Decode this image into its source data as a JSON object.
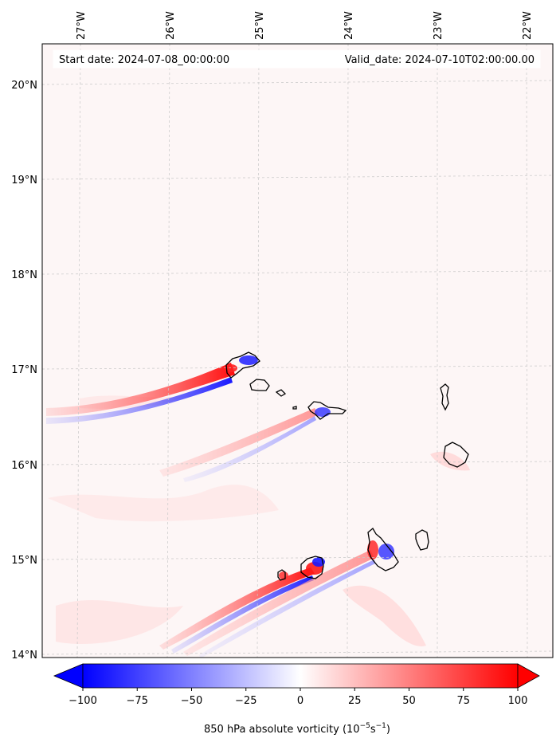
{
  "header": {
    "start_date": "Start date: 2024-07-08_00:00:00",
    "valid_date": "Valid_date: 2024-07-10T02:00:00.00"
  },
  "axes": {
    "lon_ticks": [
      "27°W",
      "26°W",
      "25°W",
      "24°W",
      "23°W",
      "22°W"
    ],
    "lat_ticks": [
      "20°N",
      "19°N",
      "18°N",
      "17°N",
      "16°N",
      "15°N",
      "14°N"
    ],
    "lon_range": [
      -27.6,
      -22.0
    ],
    "lat_range": [
      13.95,
      20.45
    ]
  },
  "colorbar": {
    "min": -100,
    "max": 100,
    "tick_labels": [
      "−100",
      "−75",
      "−50",
      "−25",
      "0",
      "25",
      "50",
      "75",
      "100"
    ],
    "label_text": "850 hPa absolute vorticity (10",
    "label_exp1": "−5",
    "label_mid": "s",
    "label_exp2": "−1",
    "label_end": ")",
    "low_color": "#0000ff",
    "high_color": "#ff0000",
    "extend": "both"
  },
  "colors": {
    "background_field": "#fdf6f6",
    "coastline": "#000000",
    "gridline": "#c8c8c8"
  }
}
